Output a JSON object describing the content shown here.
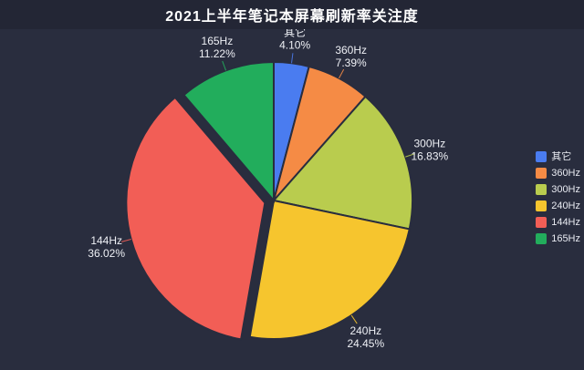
{
  "title": "2021上半年笔记本屏幕刷新率关注度",
  "colors": {
    "background": "#292d3e",
    "header_background": "#232635",
    "title_text": "#ffffff",
    "label_text": "#eef0f5"
  },
  "chart_data": {
    "type": "pie",
    "title": "2021上半年笔记本屏幕刷新率关注度",
    "legend_position": "right",
    "legend_entries": [
      "其它",
      "360Hz",
      "300Hz",
      "240Hz",
      "144Hz",
      "165Hz"
    ],
    "start_angle_deg": -90,
    "clockwise": true,
    "series": [
      {
        "name": "其它",
        "value": 4.1,
        "percent_label": "4.10%",
        "color": "#4a7cf0",
        "selected": false
      },
      {
        "name": "360Hz",
        "value": 7.39,
        "percent_label": "7.39%",
        "color": "#f58b45",
        "selected": false
      },
      {
        "name": "300Hz",
        "value": 16.83,
        "percent_label": "16.83%",
        "color": "#b9cc4e",
        "selected": false
      },
      {
        "name": "240Hz",
        "value": 24.45,
        "percent_label": "24.45%",
        "color": "#f6c52e",
        "selected": false
      },
      {
        "name": "144Hz",
        "value": 36.02,
        "percent_label": "36.02%",
        "color": "#f25e56",
        "selected": true
      },
      {
        "name": "165Hz",
        "value": 11.22,
        "percent_label": "11.22%",
        "color": "#22ad5c",
        "selected": false
      }
    ]
  }
}
